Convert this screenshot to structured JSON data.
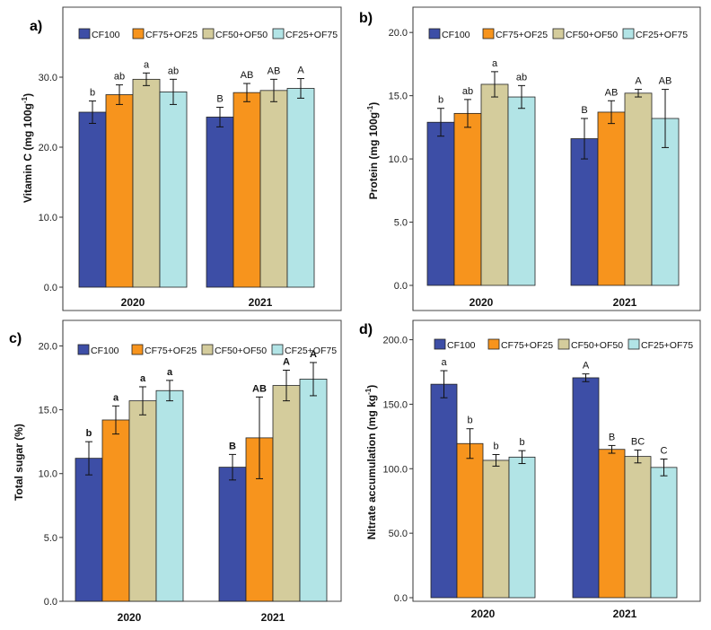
{
  "colors": {
    "CF100": "#3d4ea6",
    "CF75+OF25": "#f7941d",
    "CF50+OF50": "#d4cc9c",
    "CF25+OF75": "#b2e4e6",
    "axis": "#333333",
    "frame": "#444444"
  },
  "chart_data": [
    {
      "panel": "a)",
      "type": "bar",
      "ylabel": "Vitamin C (mg 100g",
      "ylabel_sup": "-1",
      "ylabel_end": ")",
      "ylim": [
        0,
        40
      ],
      "yticks": [
        "0.0",
        "10.0",
        "20.0",
        "30.0"
      ],
      "ytick_values": [
        0,
        10,
        20,
        30
      ],
      "categories": [
        "2020",
        "2021"
      ],
      "series": [
        {
          "name": "CF100",
          "values": [
            25.0,
            24.3
          ],
          "errors": [
            1.6,
            1.4
          ],
          "labels": [
            "b",
            "B"
          ]
        },
        {
          "name": "CF75+OF25",
          "values": [
            27.5,
            27.8
          ],
          "errors": [
            1.4,
            1.3
          ],
          "labels": [
            "ab",
            "AB"
          ]
        },
        {
          "name": "CF50+OF50",
          "values": [
            29.7,
            28.1
          ],
          "errors": [
            0.9,
            1.6
          ],
          "labels": [
            "a",
            "AB"
          ]
        },
        {
          "name": "CF25+OF75",
          "values": [
            27.9,
            28.4
          ],
          "errors": [
            1.8,
            1.4
          ],
          "labels": [
            "ab",
            "A"
          ]
        }
      ]
    },
    {
      "panel": "b)",
      "type": "bar",
      "ylabel": "Protein (mg 100g",
      "ylabel_sup": "-1",
      "ylabel_end": ")",
      "ylim": [
        0,
        22
      ],
      "yticks": [
        "0.0",
        "5.0",
        "10.0",
        "15.0",
        "20.0"
      ],
      "ytick_values": [
        0,
        5,
        10,
        15,
        20
      ],
      "categories": [
        "2020",
        "2021"
      ],
      "series": [
        {
          "name": "CF100",
          "values": [
            12.9,
            11.6
          ],
          "errors": [
            1.1,
            1.6
          ],
          "labels": [
            "b",
            "B"
          ]
        },
        {
          "name": "CF75+OF25",
          "values": [
            13.6,
            13.7
          ],
          "errors": [
            1.1,
            0.9
          ],
          "labels": [
            "ab",
            "AB"
          ]
        },
        {
          "name": "CF50+OF50",
          "values": [
            15.9,
            15.2
          ],
          "errors": [
            1.0,
            0.3
          ],
          "labels": [
            "a",
            "A"
          ]
        },
        {
          "name": "CF25+OF75",
          "values": [
            14.9,
            13.2
          ],
          "errors": [
            0.9,
            2.3
          ],
          "labels": [
            "ab",
            "AB"
          ]
        }
      ]
    },
    {
      "panel": "c)",
      "type": "bar",
      "ylabel": "Total sugar (%)",
      "ylabel_sup": "",
      "ylabel_end": "",
      "ylim": [
        0,
        22
      ],
      "yticks": [
        "0.0",
        "5.0",
        "10.0",
        "15.0",
        "20.0"
      ],
      "ytick_values": [
        0,
        5,
        10,
        15,
        20
      ],
      "categories": [
        "2020",
        "2021"
      ],
      "series": [
        {
          "name": "CF100",
          "values": [
            11.2,
            10.5
          ],
          "errors": [
            1.3,
            1.0
          ],
          "labels": [
            "b",
            "B"
          ]
        },
        {
          "name": "CF75+OF25",
          "values": [
            14.2,
            12.8
          ],
          "errors": [
            1.1,
            3.2
          ],
          "labels": [
            "a",
            "AB"
          ]
        },
        {
          "name": "CF50+OF50",
          "values": [
            15.7,
            16.9
          ],
          "errors": [
            1.1,
            1.2
          ],
          "labels": [
            "a",
            "A"
          ]
        },
        {
          "name": "CF25+OF75",
          "values": [
            16.5,
            17.4
          ],
          "errors": [
            0.8,
            1.3
          ],
          "labels": [
            "a",
            "A"
          ]
        }
      ]
    },
    {
      "panel": "d)",
      "type": "bar",
      "ylabel": "Nitrate accumulation (mg kg",
      "ylabel_sup": "-1",
      "ylabel_end": ")",
      "ylim": [
        0,
        215
      ],
      "yticks": [
        "0.0",
        "50.0",
        "100.0",
        "150.0",
        "200.0"
      ],
      "ytick_values": [
        0,
        50,
        100,
        150,
        200
      ],
      "categories": [
        "2020",
        "2021"
      ],
      "series": [
        {
          "name": "CF100",
          "values": [
            165.5,
            170.5
          ],
          "errors": [
            10.5,
            3.0
          ],
          "labels": [
            "a",
            "A"
          ]
        },
        {
          "name": "CF75+OF25",
          "values": [
            119.5,
            115.0
          ],
          "errors": [
            11.5,
            3.0
          ],
          "labels": [
            "b",
            "B"
          ]
        },
        {
          "name": "CF50+OF50",
          "values": [
            106.5,
            109.5
          ],
          "errors": [
            4.5,
            5.0
          ],
          "labels": [
            "b",
            "BC"
          ]
        },
        {
          "name": "CF25+OF75",
          "values": [
            109.0,
            101.0
          ],
          "errors": [
            5.0,
            6.5
          ],
          "labels": [
            "b",
            "C"
          ]
        }
      ]
    }
  ]
}
